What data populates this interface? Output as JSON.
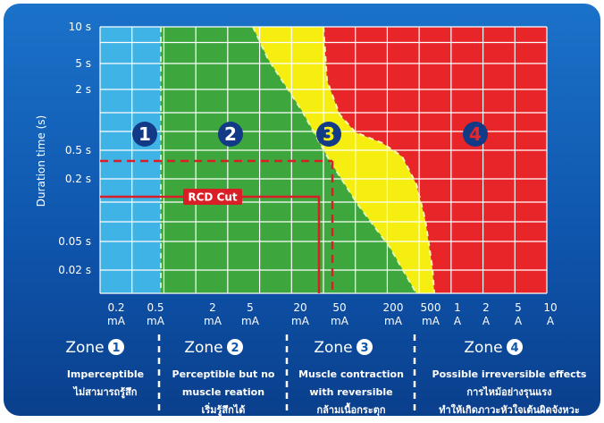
{
  "chart_data": {
    "type": "area",
    "title": "",
    "ylabel": "Duration time (s)",
    "xlabel": "",
    "y_ticks": [
      "10 s",
      "5 s",
      "2 s",
      "0.5 s",
      "0.2 s",
      "0.05 s",
      "0.02 s"
    ],
    "x_ticks": [
      {
        "value": "0.2",
        "unit": "mA"
      },
      {
        "value": "0.5",
        "unit": "mA"
      },
      {
        "value": "2",
        "unit": "mA"
      },
      {
        "value": "5",
        "unit": "mA"
      },
      {
        "value": "20",
        "unit": "mA"
      },
      {
        "value": "50",
        "unit": "mA"
      },
      {
        "value": "200",
        "unit": "mA"
      },
      {
        "value": "500",
        "unit": "mA"
      },
      {
        "value": "1",
        "unit": "A"
      },
      {
        "value": "2",
        "unit": "A"
      },
      {
        "value": "5",
        "unit": "A"
      },
      {
        "value": "10",
        "unit": "A"
      }
    ],
    "zones": [
      {
        "id": 1,
        "badge": "1",
        "label": "Zone",
        "color": "#3fb2e6",
        "desc": [
          "Imperceptible",
          "ไม่สามารถรู้สึก"
        ]
      },
      {
        "id": 2,
        "badge": "2",
        "label": "Zone",
        "color": "#3da63c",
        "desc": [
          "Perceptible but no",
          "muscle reation",
          "เริ่มรู้สึกได้"
        ]
      },
      {
        "id": 3,
        "badge": "3",
        "label": "Zone",
        "color": "#f5ee10",
        "desc": [
          "Muscle contraction",
          "with reversible",
          "กล้ามเนื้อกระตุก"
        ]
      },
      {
        "id": 4,
        "badge": "4",
        "label": "Zone",
        "color": "#e8262a",
        "desc": [
          "Possible irreversible effects",
          "การไหม้อย่างรุนแรง",
          "ทำให้เกิดภาวะหัวใจเต้นผิดจังหวะ"
        ]
      }
    ],
    "annotation": {
      "label": "RCD Cut",
      "current_mA": 30,
      "time_s": 0.1
    },
    "reference_lines": {
      "current_mA": 30,
      "time_s": 0.3
    },
    "grid": true
  }
}
